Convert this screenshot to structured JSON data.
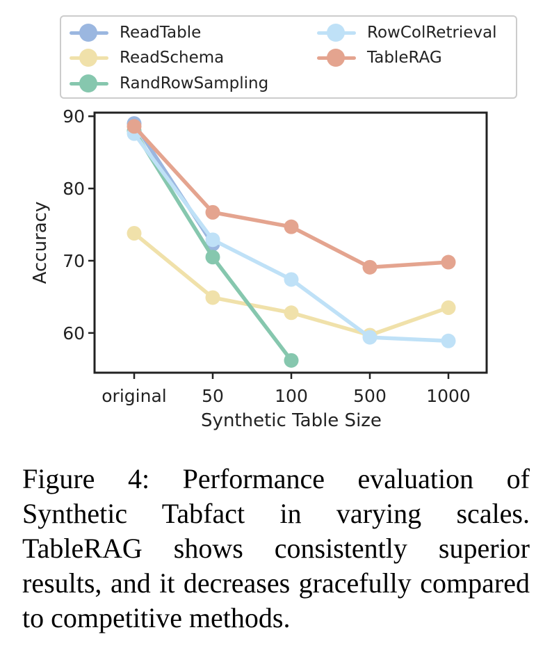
{
  "chart_data": {
    "type": "line",
    "xlabel": "Synthetic Table Size",
    "ylabel": "Accuracy",
    "categories": [
      "original",
      "50",
      "100",
      "500",
      "1000"
    ],
    "ylim": [
      54.5,
      90.5
    ],
    "yticks": [
      60,
      70,
      80,
      90
    ],
    "grid": false,
    "legend_position": "top",
    "series": [
      {
        "name": "ReadTable",
        "color": "#9bb7e0",
        "values": [
          89.0,
          72.3,
          null,
          null,
          null
        ]
      },
      {
        "name": "ReadSchema",
        "color": "#f0e1aa",
        "values": [
          73.8,
          64.9,
          62.8,
          59.7,
          63.5
        ]
      },
      {
        "name": "RandRowSampling",
        "color": "#86c7ae",
        "values": [
          88.0,
          70.5,
          56.2,
          null,
          null
        ]
      },
      {
        "name": "RowColRetrieval",
        "color": "#bfe1f7",
        "values": [
          87.6,
          72.9,
          67.4,
          59.4,
          58.9
        ]
      },
      {
        "name": "TableRAG",
        "color": "#e4a48f",
        "values": [
          88.6,
          76.7,
          74.7,
          69.1,
          69.8
        ]
      }
    ]
  },
  "caption": "Figure 4: Performance evaluation of Synthetic Tabfact in varying scales. TableRAG shows consistently superior results, and it decreases gracefully compared to competitive methods."
}
